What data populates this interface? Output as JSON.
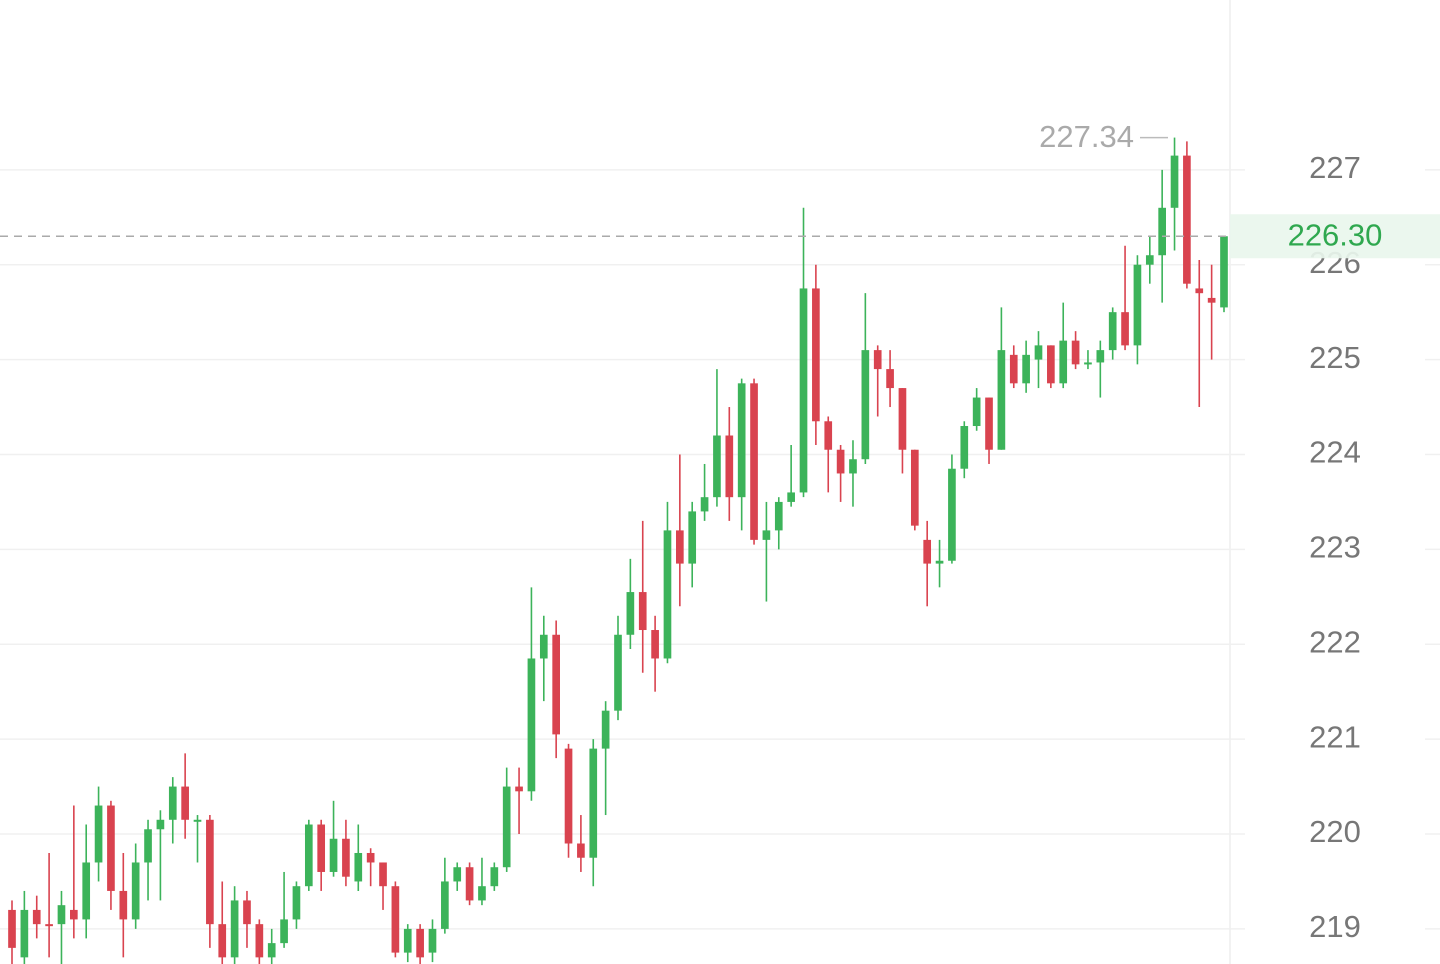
{
  "chart_data": {
    "type": "candlestick",
    "up_color": "#3cb35a",
    "down_color": "#d9434f",
    "open": [
      219.2,
      218.7,
      219.2,
      219.05,
      219.05,
      219.2,
      219.1,
      219.7,
      220.3,
      219.4,
      219.1,
      219.7,
      220.05,
      220.15,
      220.5,
      220.13,
      220.15,
      219.05,
      218.7,
      219.3,
      219.05,
      218.7,
      218.85,
      219.1,
      219.45,
      220.1,
      219.6,
      219.95,
      219.5,
      219.8,
      219.7,
      219.45,
      218.75,
      219.0,
      218.75,
      219.0,
      219.5,
      219.65,
      219.3,
      219.45,
      219.65,
      220.5,
      220.45,
      221.85,
      222.1,
      220.9,
      219.9,
      219.75,
      220.9,
      221.3,
      222.1,
      222.55,
      222.15,
      221.85,
      223.2,
      222.85,
      223.4,
      223.55,
      224.2,
      223.55,
      224.75,
      223.1,
      223.2,
      223.5,
      223.6,
      225.75,
      224.35,
      224.05,
      223.8,
      223.95,
      225.1,
      224.9,
      224.7,
      224.05,
      223.1,
      222.85,
      222.88,
      223.85,
      224.3,
      224.6,
      224.05,
      225.05,
      224.75,
      225.0,
      225.15,
      224.75,
      225.2,
      224.95,
      224.97,
      225.1,
      225.5,
      225.15,
      226.0,
      226.1,
      226.6,
      227.15,
      225.75,
      225.65,
      225.55
    ],
    "high": [
      219.3,
      219.4,
      219.35,
      219.8,
      219.4,
      220.3,
      220.1,
      220.5,
      220.35,
      219.8,
      219.9,
      220.15,
      220.25,
      220.6,
      220.85,
      220.2,
      220.2,
      219.5,
      219.45,
      219.4,
      219.1,
      219.0,
      219.6,
      219.5,
      220.15,
      220.15,
      220.35,
      220.15,
      220.1,
      219.85,
      219.7,
      219.5,
      219.05,
      219.05,
      219.1,
      219.75,
      219.7,
      219.7,
      219.75,
      219.7,
      220.7,
      220.7,
      222.6,
      222.3,
      222.25,
      220.95,
      220.2,
      221.0,
      221.4,
      222.3,
      222.9,
      223.3,
      222.3,
      223.5,
      224.0,
      223.5,
      223.9,
      224.9,
      224.5,
      224.8,
      224.8,
      223.5,
      223.55,
      224.1,
      226.6,
      226.0,
      224.4,
      224.1,
      224.15,
      225.7,
      225.15,
      225.1,
      224.7,
      224.05,
      223.3,
      223.1,
      224.0,
      224.35,
      224.7,
      224.6,
      225.55,
      225.15,
      225.2,
      225.3,
      225.15,
      225.6,
      225.3,
      225.1,
      225.2,
      225.55,
      226.2,
      226.1,
      226.3,
      227.0,
      227.34,
      227.3,
      226.05,
      226.0,
      226.3
    ],
    "low": [
      218.6,
      218.6,
      218.9,
      218.7,
      218.6,
      218.9,
      218.9,
      219.5,
      219.2,
      218.7,
      219.0,
      219.3,
      219.3,
      219.9,
      219.95,
      219.7,
      218.8,
      218.6,
      218.6,
      218.8,
      218.6,
      218.6,
      218.8,
      219.0,
      219.4,
      219.4,
      219.55,
      219.45,
      219.4,
      219.45,
      219.2,
      218.7,
      218.65,
      218.6,
      218.65,
      218.95,
      219.4,
      219.25,
      219.25,
      219.4,
      219.6,
      220.0,
      220.35,
      221.4,
      220.8,
      219.75,
      219.6,
      219.45,
      220.2,
      221.2,
      221.95,
      221.7,
      221.5,
      221.8,
      222.4,
      222.6,
      223.3,
      223.45,
      223.3,
      223.2,
      223.05,
      222.45,
      223.0,
      223.45,
      223.55,
      224.1,
      223.6,
      223.5,
      223.45,
      223.9,
      224.4,
      224.5,
      223.8,
      223.2,
      222.4,
      222.6,
      222.85,
      223.75,
      224.25,
      223.9,
      224.05,
      224.7,
      224.65,
      224.7,
      224.7,
      224.7,
      224.9,
      224.9,
      224.6,
      225.0,
      225.1,
      224.95,
      225.8,
      225.6,
      226.15,
      225.75,
      224.5,
      225.0,
      225.5
    ],
    "close": [
      218.8,
      219.2,
      219.05,
      219.03,
      219.25,
      219.1,
      219.7,
      220.3,
      219.4,
      219.1,
      219.7,
      220.05,
      220.15,
      220.5,
      220.15,
      220.15,
      219.05,
      218.7,
      219.3,
      219.05,
      218.7,
      218.85,
      219.1,
      219.45,
      220.1,
      219.6,
      219.95,
      219.55,
      219.8,
      219.7,
      219.45,
      218.75,
      219.0,
      218.7,
      219.0,
      219.5,
      219.65,
      219.3,
      219.45,
      219.65,
      220.5,
      220.45,
      221.85,
      222.1,
      221.05,
      219.9,
      219.75,
      220.9,
      221.3,
      222.1,
      222.55,
      222.15,
      221.85,
      223.2,
      222.85,
      223.4,
      223.55,
      224.2,
      223.55,
      224.75,
      223.1,
      223.2,
      223.5,
      223.6,
      225.75,
      224.35,
      224.05,
      223.8,
      223.95,
      225.1,
      224.9,
      224.7,
      224.05,
      223.25,
      222.85,
      222.88,
      223.85,
      224.3,
      224.6,
      224.05,
      225.1,
      224.75,
      225.05,
      225.15,
      224.75,
      225.2,
      224.95,
      224.97,
      225.1,
      225.5,
      225.15,
      226.0,
      226.1,
      226.6,
      227.15,
      225.8,
      225.7,
      225.6,
      226.3
    ],
    "ylim": [
      218.63,
      228.79
    ],
    "yticks": [
      219,
      220,
      221,
      222,
      223,
      224,
      225,
      226,
      227
    ],
    "grid": true,
    "max_marker": 227.34,
    "last_price": {
      "value": 226.3,
      "label": "226.30",
      "color": "#2fa84f"
    }
  }
}
